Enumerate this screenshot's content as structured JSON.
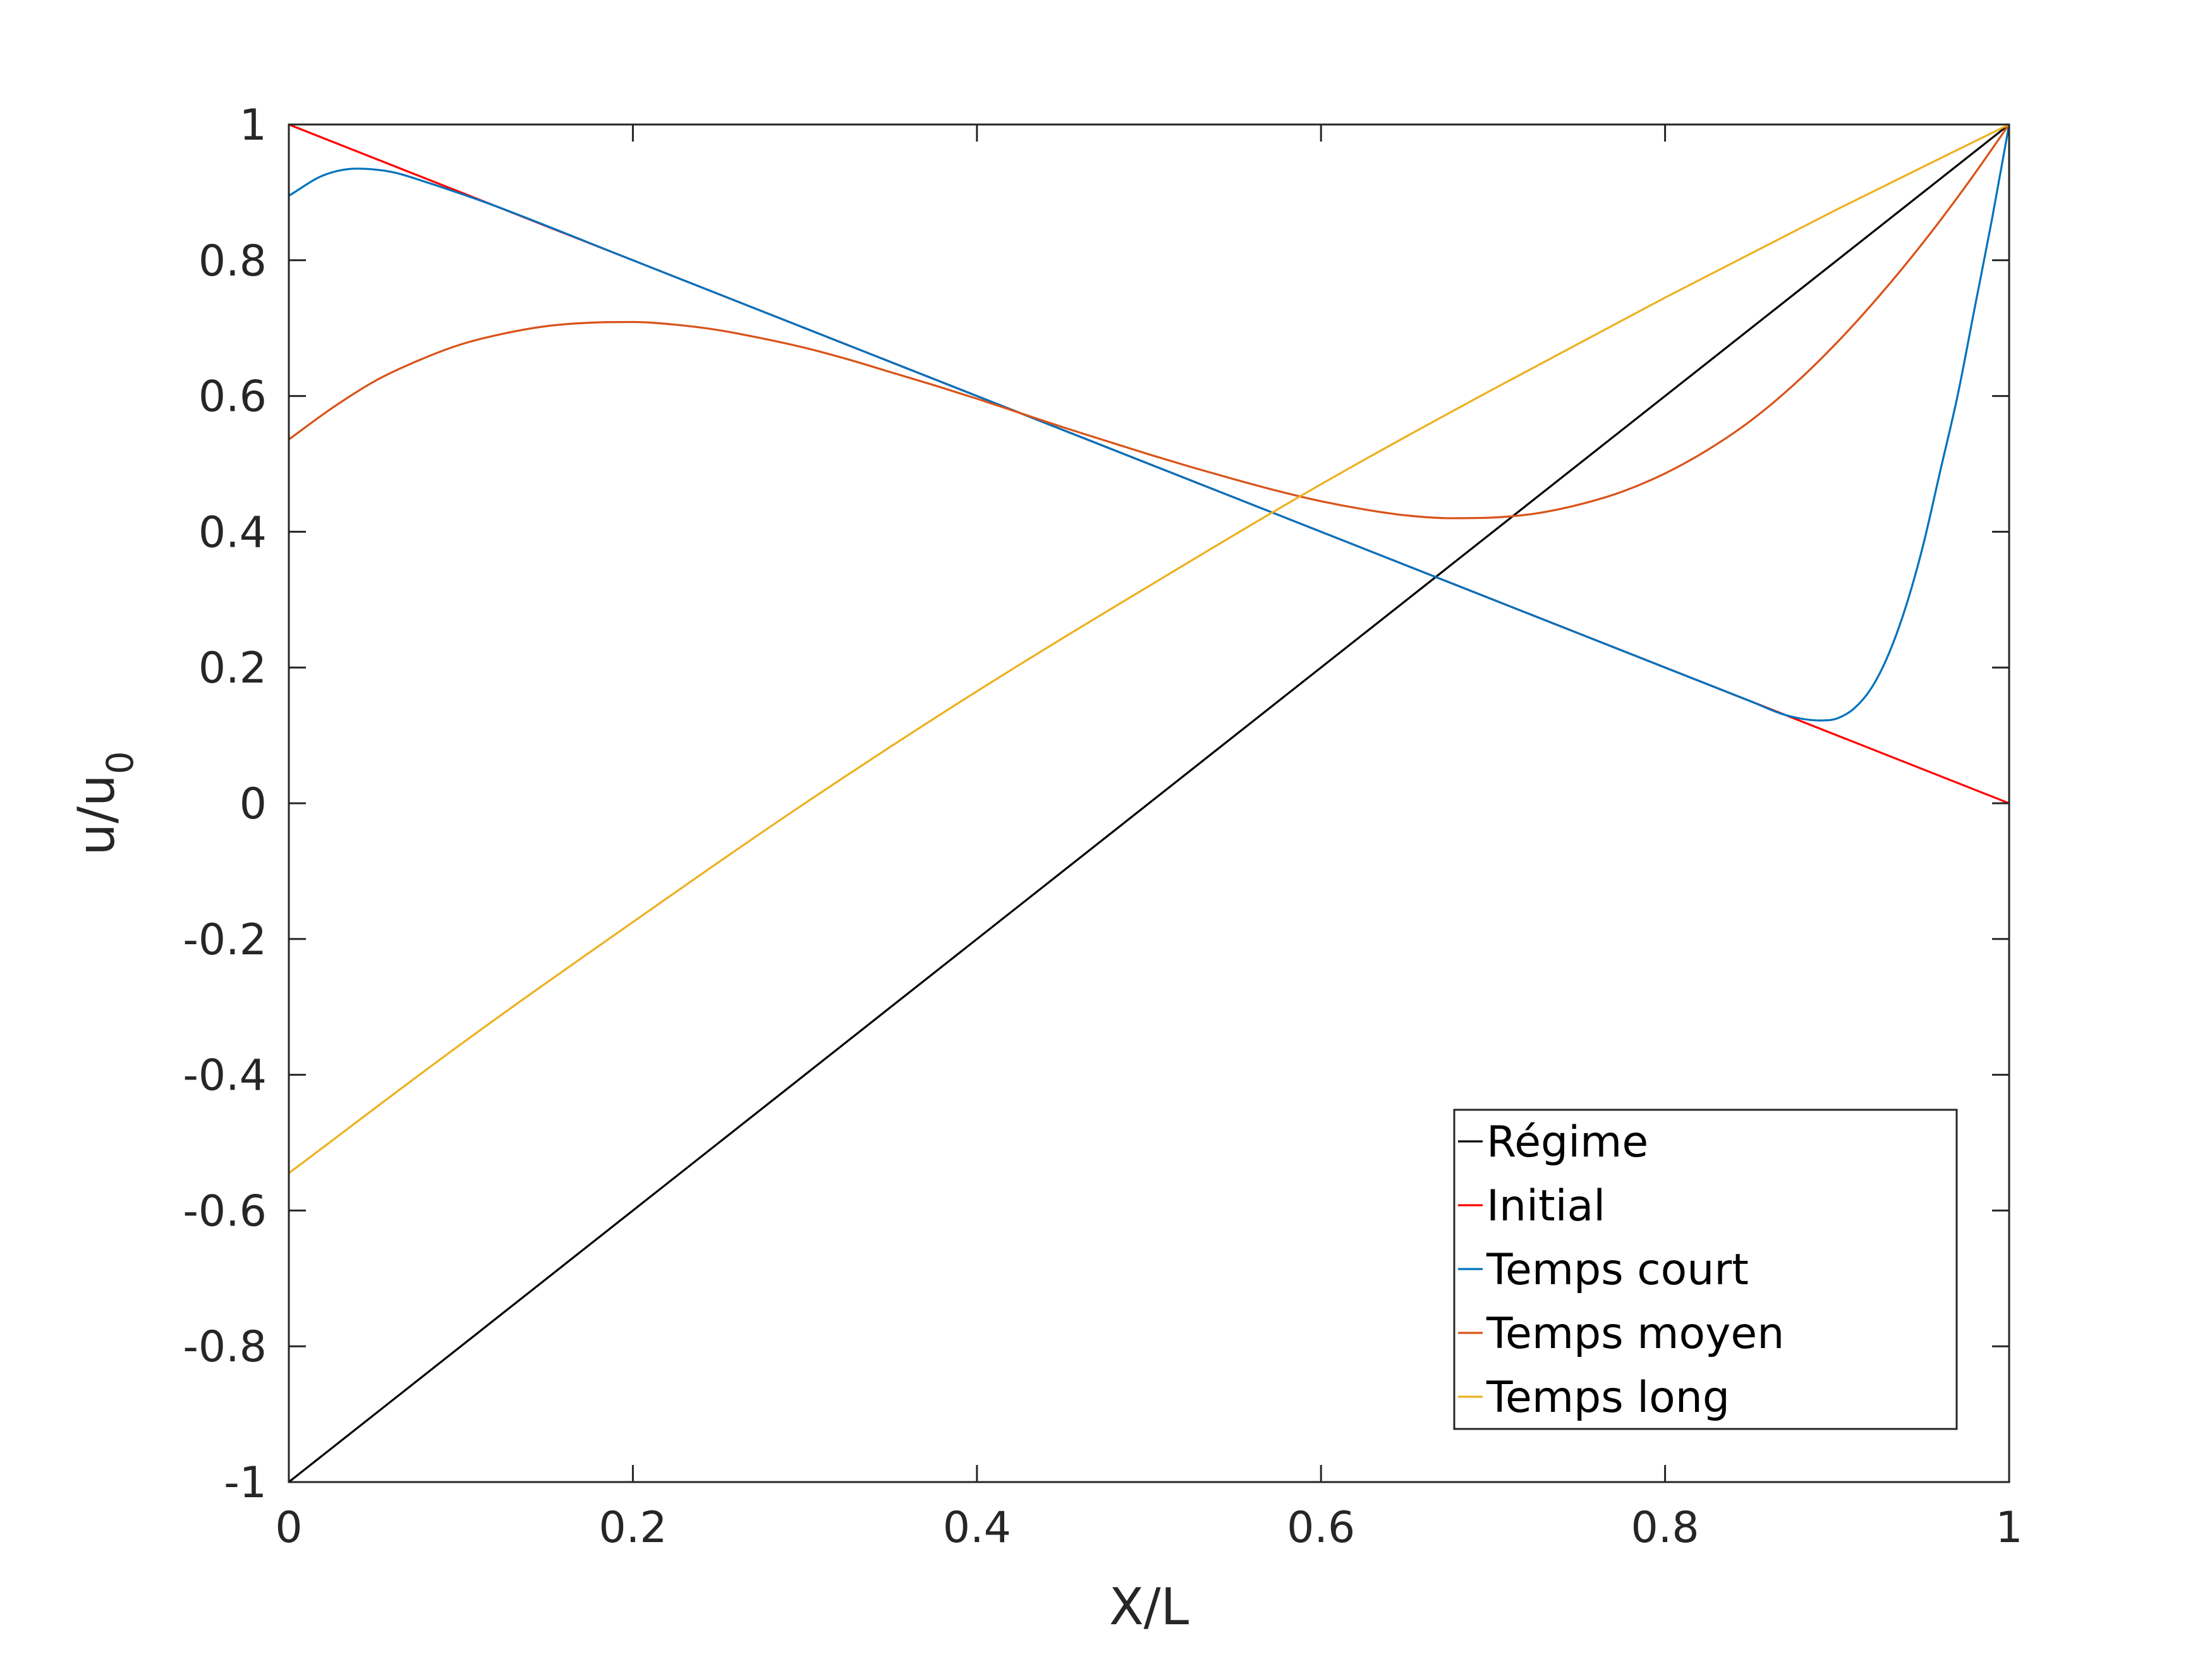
{
  "chart_data": {
    "type": "line",
    "xlabel": "X/L",
    "ylabel": "u/u",
    "ylabel_subscript": "0",
    "xlim": [
      0,
      1
    ],
    "ylim": [
      -1,
      1
    ],
    "xticks": [
      0,
      0.2,
      0.4,
      0.6,
      0.8,
      1
    ],
    "xtick_labels": [
      "0",
      "0.2",
      "0.4",
      "0.6",
      "0.8",
      "1"
    ],
    "yticks": [
      -1,
      -0.8,
      -0.6,
      -0.4,
      -0.2,
      0,
      0.2,
      0.4,
      0.6,
      0.8,
      1
    ],
    "ytick_labels": [
      "-1",
      "-0.8",
      "-0.6",
      "-0.4",
      "-0.2",
      "0",
      "0.2",
      "0.4",
      "0.6",
      "0.8",
      "1"
    ],
    "grid": false,
    "box": true,
    "legend_position": "bottom-right",
    "series": [
      {
        "name": "Régime",
        "color": "#000000",
        "x": [
          0,
          1
        ],
        "y": [
          -1,
          1
        ]
      },
      {
        "name": "Initial",
        "color": "#ff0000",
        "x": [
          0,
          1
        ],
        "y": [
          1,
          0
        ]
      },
      {
        "name": "Temps court",
        "color": "#0072bd",
        "x": [
          0,
          0.02,
          0.04,
          0.06,
          0.08,
          0.1,
          0.12,
          0.2,
          0.3,
          0.4,
          0.5,
          0.6,
          0.7,
          0.8,
          0.85,
          0.87,
          0.89,
          0.9,
          0.91,
          0.92,
          0.93,
          0.94,
          0.95,
          0.96,
          0.97,
          0.98,
          0.99,
          1
        ],
        "y": [
          0.895,
          0.925,
          0.935,
          0.93,
          0.915,
          0.898,
          0.88,
          0.8,
          0.7,
          0.6,
          0.5,
          0.4,
          0.3,
          0.2,
          0.15,
          0.13,
          0.122,
          0.125,
          0.14,
          0.17,
          0.22,
          0.29,
          0.38,
          0.49,
          0.6,
          0.73,
          0.86,
          1.0
        ]
      },
      {
        "name": "Temps moyen",
        "color": "#d95319",
        "x": [
          0,
          0.025,
          0.05,
          0.075,
          0.1,
          0.125,
          0.15,
          0.175,
          0.2,
          0.225,
          0.25,
          0.275,
          0.3,
          0.325,
          0.35,
          0.375,
          0.4,
          0.425,
          0.45,
          0.475,
          0.5,
          0.525,
          0.55,
          0.575,
          0.6,
          0.625,
          0.65,
          0.675,
          0.7,
          0.725,
          0.75,
          0.775,
          0.8,
          0.825,
          0.85,
          0.875,
          0.9,
          0.925,
          0.95,
          0.975,
          1
        ],
        "y": [
          0.536,
          0.582,
          0.622,
          0.652,
          0.676,
          0.692,
          0.703,
          0.708,
          0.709,
          0.705,
          0.697,
          0.685,
          0.671,
          0.654,
          0.635,
          0.616,
          0.596,
          0.575,
          0.554,
          0.534,
          0.514,
          0.495,
          0.477,
          0.46,
          0.445,
          0.433,
          0.424,
          0.42,
          0.421,
          0.427,
          0.44,
          0.459,
          0.486,
          0.521,
          0.564,
          0.617,
          0.679,
          0.749,
          0.826,
          0.91,
          1.0
        ]
      },
      {
        "name": "Temps long",
        "color": "#edb120",
        "x": [
          0,
          0.1,
          0.2,
          0.3,
          0.4,
          0.5,
          0.6,
          0.7,
          0.8,
          0.9,
          1
        ],
        "y": [
          -0.545,
          -0.355,
          -0.175,
          0.0,
          0.165,
          0.32,
          0.47,
          0.61,
          0.745,
          0.875,
          1.0
        ]
      }
    ]
  }
}
